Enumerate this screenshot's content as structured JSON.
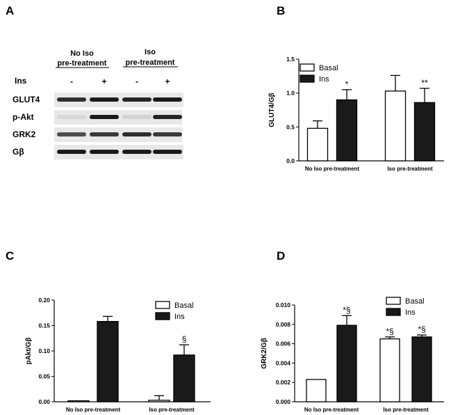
{
  "panels": {
    "a": "A",
    "b": "B",
    "c": "C",
    "d": "D"
  },
  "blot": {
    "group_left_line1": "No Iso",
    "group_left_line2": "pre-treatment",
    "group_right_line1": "Iso",
    "group_right_line2": "pre-treatment",
    "treatment_label": "Ins",
    "lane_signs": [
      "-",
      "+",
      "-",
      "+"
    ],
    "rows": [
      "GLUT4",
      "p-Akt",
      "GRK2",
      "Gβ"
    ],
    "band_color": "#1a1a1a",
    "membrane_color": "#e8e8e8"
  },
  "chart_data": [
    {
      "type": "bar",
      "panel": "B",
      "categories": [
        "No Iso pre-treatment",
        "Iso pre-treatment"
      ],
      "series": [
        {
          "name": "Basal",
          "values": [
            0.48,
            1.03
          ],
          "errors": [
            0.11,
            0.23
          ],
          "fill": "#ffffff"
        },
        {
          "name": "Ins",
          "values": [
            0.9,
            0.86
          ],
          "errors": [
            0.15,
            0.21
          ],
          "fill": "#1a1a1a"
        }
      ],
      "ylabel": "GLUT4/Gβ",
      "ylim": [
        0,
        1.5
      ],
      "yticks": [
        0,
        0.5,
        1.0,
        1.5
      ],
      "ytick_labels": [
        "0.0",
        "0.5",
        "1.0",
        "1.5"
      ],
      "legend_position": "top-left",
      "annotations": [
        {
          "category": 0,
          "series": 1,
          "text": "*"
        },
        {
          "category": 1,
          "series": 1,
          "text": "**"
        }
      ]
    },
    {
      "type": "bar",
      "panel": "C",
      "categories": [
        "No Iso pre-treatment",
        "Iso pre-treatment"
      ],
      "series": [
        {
          "name": "Basal",
          "values": [
            0.002,
            0.003
          ],
          "errors": [
            0.0,
            0.009
          ],
          "fill": "#ffffff"
        },
        {
          "name": "Ins",
          "values": [
            0.158,
            0.092
          ],
          "errors": [
            0.01,
            0.02
          ],
          "fill": "#1a1a1a"
        }
      ],
      "ylabel": "pAkt/Gβ",
      "ylim": [
        0,
        0.2
      ],
      "yticks": [
        0,
        0.05,
        0.1,
        0.15,
        0.2
      ],
      "ytick_labels": [
        "0.00",
        "0.05",
        "0.10",
        "0.15",
        "0.20"
      ],
      "legend_position": "top-right",
      "annotations": [
        {
          "category": 1,
          "series": 1,
          "text": "§"
        }
      ]
    },
    {
      "type": "bar",
      "panel": "D",
      "categories": [
        "No Iso pre-treatment",
        "Iso pre-treatment"
      ],
      "series": [
        {
          "name": "Basal",
          "values": [
            0.0023,
            0.0065
          ],
          "errors": [
            0.0,
            0.0002
          ],
          "fill": "#ffffff"
        },
        {
          "name": "Ins",
          "values": [
            0.0079,
            0.0067
          ],
          "errors": [
            0.001,
            0.0002
          ],
          "fill": "#1a1a1a"
        }
      ],
      "ylabel": "GRK2/Gβ",
      "ylim": [
        0,
        0.01
      ],
      "yticks": [
        0,
        0.002,
        0.004,
        0.006,
        0.008,
        0.01
      ],
      "ytick_labels": [
        "0.000",
        "0.002",
        "0.004",
        "0.006",
        "0.008",
        "0.010"
      ],
      "legend_position": "top-right",
      "annotations": [
        {
          "category": 0,
          "series": 1,
          "text": "*§"
        },
        {
          "category": 1,
          "series": 0,
          "text": "*§"
        },
        {
          "category": 1,
          "series": 1,
          "text": "*§"
        }
      ]
    }
  ]
}
